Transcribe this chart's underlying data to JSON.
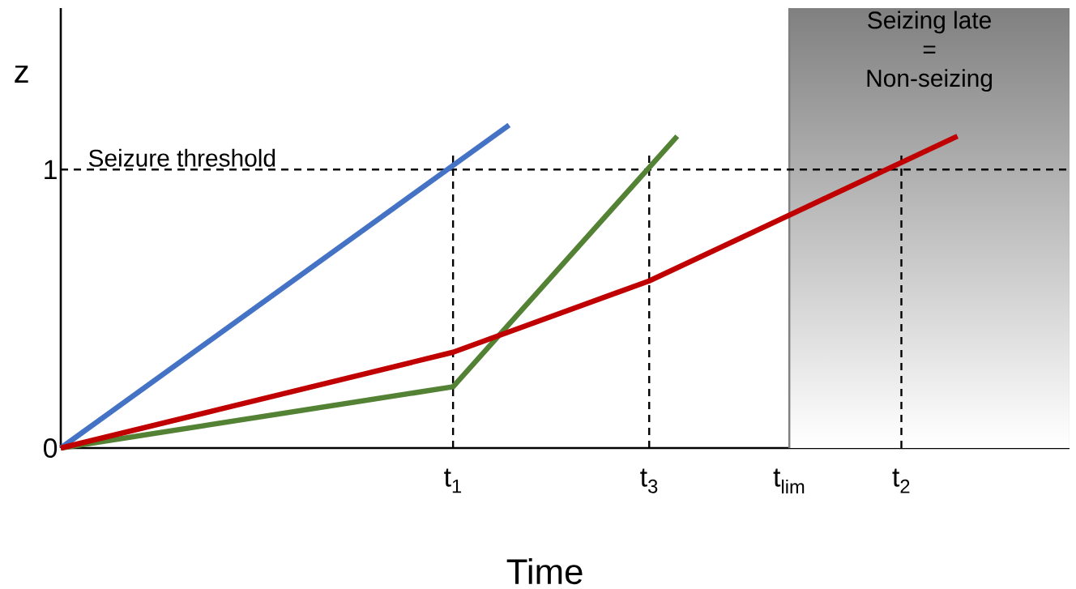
{
  "chart_data": {
    "type": "line",
    "xlabel": "Time",
    "ylabel": "z",
    "ylim": [
      0,
      1.58
    ],
    "categories": [
      null,
      null,
      null,
      null,
      null,
      null,
      null,
      null,
      null,
      null,
      null,
      null,
      null,
      null,
      "t$_{1}$",
      null,
      null,
      null,
      null,
      null,
      null,
      "t$_{3}$",
      null,
      null,
      null,
      null,
      "t$_{lim}$",
      null,
      null,
      null,
      "t$_{2}$",
      null,
      null,
      null,
      null,
      null,
      null
    ],
    "yticks": [
      0,
      1
    ],
    "series": [
      {
        "color": "#4472c4",
        "values": [
          0,
          null,
          null,
          null,
          null,
          null,
          null,
          null,
          null,
          null,
          null,
          null,
          null,
          null,
          null,
          null,
          1.16,
          null,
          null,
          null,
          null,
          null,
          null,
          null,
          null,
          null,
          null,
          null,
          null,
          null,
          null,
          null,
          null,
          null,
          null,
          null,
          null
        ]
      },
      {
        "color": "#548235",
        "values": [
          0,
          null,
          null,
          null,
          null,
          null,
          null,
          null,
          null,
          null,
          null,
          null,
          null,
          null,
          0.22,
          null,
          null,
          null,
          null,
          null,
          null,
          null,
          1.12,
          null,
          null,
          null,
          null,
          null,
          null,
          null,
          null,
          null,
          null,
          null,
          null,
          null,
          null
        ]
      },
      {
        "color": "#c00000",
        "values": [
          0,
          null,
          null,
          null,
          null,
          null,
          null,
          null,
          null,
          null,
          null,
          null,
          null,
          null,
          0.344,
          null,
          null,
          null,
          null,
          null,
          null,
          0.6,
          null,
          null,
          null,
          null,
          null,
          null,
          null,
          null,
          null,
          null,
          1.12,
          null,
          null,
          null,
          null
        ]
      }
    ],
    "ref_lines": [
      {
        "axis": "y",
        "value": 1,
        "label": "Seizure threshold",
        "line_style": "dashed"
      },
      {
        "axis": "x",
        "value": "t$_{1}$",
        "line_style": "dashed"
      },
      {
        "axis": "x",
        "value": "t$_{3}$",
        "line_style": "dashed"
      },
      {
        "axis": "x",
        "value": "t$_{2}$",
        "line_style": "dashed"
      }
    ],
    "annotations": [
      "Seizing late = Non-seizing"
    ],
    "line_style": "solid",
    "marker": "none",
    "grid": false
  }
}
